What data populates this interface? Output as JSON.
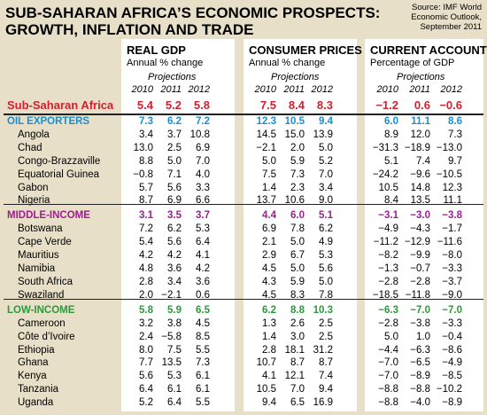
{
  "header": {
    "title": [
      "SUB-SAHARAN AFRICA’S ECONOMIC PROSPECTS:",
      "GROWTH, INFLATION AND TRADE"
    ],
    "source": [
      "Source: IMF World",
      "Economic Outlook,",
      "September 2011"
    ]
  },
  "groups": [
    {
      "title": "REAL GDP",
      "subtitle": "Annual % change",
      "projections": "Projections",
      "years": [
        "2010",
        "2011",
        "2012"
      ]
    },
    {
      "title": "CONSUMER PRICES",
      "subtitle": "Annual % change",
      "projections": "Projections",
      "years": [
        "2010",
        "2011",
        "2012"
      ]
    },
    {
      "title": "CURRENT ACCOUNT",
      "subtitle": "Percentage of GDP",
      "projections": "Projections",
      "years": [
        "2010",
        "2011",
        "2012"
      ]
    }
  ],
  "rows": [
    {
      "label": "Sub-Saharan Africa",
      "color": "#d2202f",
      "cells": [
        "5.4",
        "5.2",
        "5.8",
        "7.5",
        "8.4",
        "8.3",
        "−1.2",
        "0.6",
        "−0.6"
      ]
    },
    {
      "label": "OIL EXPORTERS",
      "color": "#1a8fd0",
      "cells": [
        "7.3",
        "6.2",
        "7.2",
        "12.3",
        "10.5",
        "9.4",
        "6.0",
        "11.1",
        "8.6"
      ]
    },
    {
      "label": "Angola",
      "cells": [
        "3.4",
        "3.7",
        "10.8",
        "14.5",
        "15.0",
        "13.9",
        "8.9",
        "12.0",
        "7.3"
      ]
    },
    {
      "label": "Chad",
      "cells": [
        "13.0",
        "2.5",
        "6.9",
        "−2.1",
        "2.0",
        "5.0",
        "−31.3",
        "−18.9",
        "−13.0"
      ]
    },
    {
      "label": "Congo-Brazzaville",
      "cells": [
        "8.8",
        "5.0",
        "7.0",
        "5.0",
        "5.9",
        "5.2",
        "5.1",
        "7.4",
        "9.7"
      ]
    },
    {
      "label": "Equatorial Guinea",
      "cells": [
        "−0.8",
        "7.1",
        "4.0",
        "7.5",
        "7.3",
        "7.0",
        "−24.2",
        "−9.6",
        "−10.5"
      ]
    },
    {
      "label": "Gabon",
      "cells": [
        "5.7",
        "5.6",
        "3.3",
        "1.4",
        "2.3",
        "3.4",
        "10.5",
        "14.8",
        "12.3"
      ]
    },
    {
      "label": "Nigeria",
      "cells": [
        "8.7",
        "6.9",
        "6.6",
        "13.7",
        "10.6",
        "9.0",
        "8.4",
        "13.5",
        "11.1"
      ]
    },
    {
      "label": "MIDDLE-INCOME",
      "color": "#9b1f8f",
      "cells": [
        "3.1",
        "3.5",
        "3.7",
        "4.4",
        "6.0",
        "5.1",
        "−3.1",
        "−3.0",
        "−3.8"
      ]
    },
    {
      "label": "Botswana",
      "cells": [
        "7.2",
        "6.2",
        "5.3",
        "6.9",
        "7.8",
        "6.2",
        "−4.9",
        "−4.3",
        "−1.7"
      ]
    },
    {
      "label": "Cape Verde",
      "cells": [
        "5.4",
        "5.6",
        "6.4",
        "2.1",
        "5.0",
        "4.9",
        "−11.2",
        "−12.9",
        "−11.6"
      ]
    },
    {
      "label": "Mauritius",
      "cells": [
        "4.2",
        "4.2",
        "4.1",
        "2.9",
        "6.7",
        "5.3",
        "−8.2",
        "−9.9",
        "−8.0"
      ]
    },
    {
      "label": "Namibia",
      "cells": [
        "4.8",
        "3.6",
        "4.2",
        "4.5",
        "5.0",
        "5.6",
        "−1.3",
        "−0.7",
        "−3.3"
      ]
    },
    {
      "label": "South Africa",
      "cells": [
        "2.8",
        "3.4",
        "3.6",
        "4.3",
        "5.9",
        "5.0",
        "−2.8",
        "−2.8",
        "−3.7"
      ]
    },
    {
      "label": "Swaziland",
      "cells": [
        "2.0",
        "−2.1",
        "0.6",
        "4.5",
        "8.3",
        "7.8",
        "−18.5",
        "−11.8",
        "−9.0"
      ]
    },
    {
      "label": "LOW-INCOME",
      "color": "#2a9a3a",
      "cells": [
        "5.8",
        "5.9",
        "6.5",
        "6.2",
        "8.8",
        "10.3",
        "−6.3",
        "−7.0",
        "−7.0"
      ]
    },
    {
      "label": "Cameroon",
      "cells": [
        "3.2",
        "3.8",
        "4.5",
        "1.3",
        "2.6",
        "2.5",
        "−2.8",
        "−3.8",
        "−3.3"
      ]
    },
    {
      "label": "Côte d’Ivoire",
      "cells": [
        "2.4",
        "−5.8",
        "8.5",
        "1.4",
        "3.0",
        "2.5",
        "5.0",
        "1.0",
        "−0.4"
      ]
    },
    {
      "label": "Ethiopia",
      "cells": [
        "8.0",
        "7.5",
        "5.5",
        "2.8",
        "18.1",
        "31.2",
        "−4.4",
        "−6.3",
        "−8.6"
      ]
    },
    {
      "label": "Ghana",
      "cells": [
        "7.7",
        "13.5",
        "7.3",
        "10.7",
        "8.7",
        "8.7",
        "−7.0",
        "−6.5",
        "−4.9"
      ]
    },
    {
      "label": "Kenya",
      "cells": [
        "5.6",
        "5.3",
        "6.1",
        "4.1",
        "12.1",
        "7.4",
        "−7.0",
        "−8.9",
        "−8.5"
      ]
    },
    {
      "label": "Tanzania",
      "cells": [
        "6.4",
        "6.1",
        "6.1",
        "10.5",
        "7.0",
        "9.4",
        "−8.8",
        "−8.8",
        "−10.2"
      ]
    },
    {
      "label": "Uganda",
      "cells": [
        "5.2",
        "6.4",
        "5.5",
        "9.4",
        "6.5",
        "16.9",
        "−8.8",
        "−4.0",
        "−8.9"
      ]
    }
  ]
}
